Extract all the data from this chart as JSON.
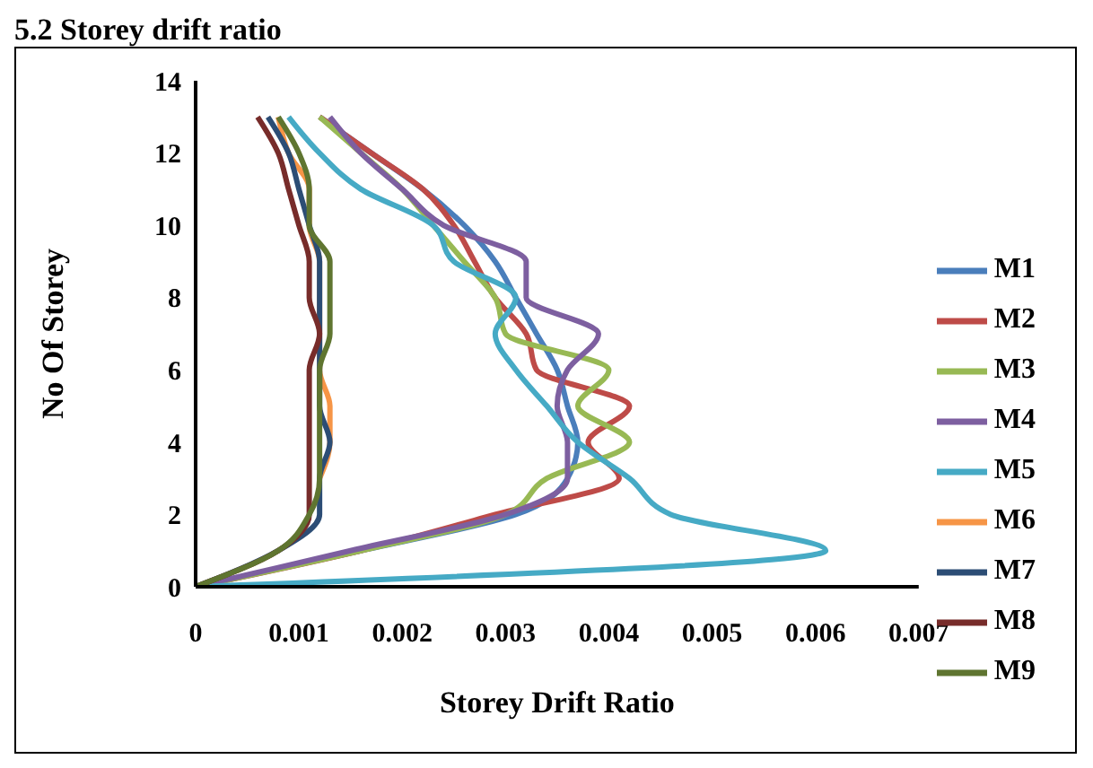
{
  "chart_data": {
    "type": "line",
    "title": "5.2 Storey drift ratio",
    "xlabel": "Storey Drift Ratio",
    "ylabel": "No Of Storey",
    "orientation": "horizontal",
    "x": [
      0,
      1,
      2,
      3,
      4,
      5,
      6,
      7,
      8,
      9,
      10,
      11,
      12,
      13
    ],
    "series": [
      {
        "name": "M1",
        "color": "#4a7ebb",
        "values": [
          0,
          0.0016,
          0.0031,
          0.0036,
          0.0037,
          0.0036,
          0.0035,
          0.0033,
          0.0031,
          0.0029,
          0.0026,
          0.0022,
          0.0017,
          0.0012
        ]
      },
      {
        "name": "M2",
        "color": "#be4b48",
        "values": [
          0,
          0.0016,
          0.0029,
          0.0041,
          0.0038,
          0.0042,
          0.0033,
          0.0032,
          0.0029,
          0.0027,
          0.0025,
          0.0022,
          0.0017,
          0.0012
        ]
      },
      {
        "name": "M3",
        "color": "#98b954",
        "values": [
          0,
          0.0016,
          0.003,
          0.0034,
          0.0042,
          0.0037,
          0.004,
          0.003,
          0.0029,
          0.0026,
          0.0023,
          0.002,
          0.0016,
          0.0012
        ]
      },
      {
        "name": "M4",
        "color": "#7d5fa0",
        "values": [
          0,
          0.0015,
          0.003,
          0.0036,
          0.0036,
          0.0035,
          0.0036,
          0.0039,
          0.0032,
          0.0032,
          0.0024,
          0.002,
          0.0016,
          0.0013
        ]
      },
      {
        "name": "M5",
        "color": "#46aac5",
        "values": [
          0,
          0.0061,
          0.0046,
          0.0042,
          0.0037,
          0.0034,
          0.0031,
          0.0029,
          0.0031,
          0.0025,
          0.0023,
          0.0016,
          0.0012,
          0.0009
        ]
      },
      {
        "name": "M6",
        "color": "#f69546",
        "values": [
          null,
          null,
          null,
          0.0012,
          0.0013,
          0.0013,
          0.0012,
          0.0012,
          0.0012,
          0.0012,
          0.0011,
          0.0011,
          0.0009,
          0.0008
        ]
      },
      {
        "name": "M7",
        "color": "#2c4d75",
        "values": [
          0,
          0.0008,
          0.0012,
          0.0012,
          0.0013,
          0.0012,
          0.0012,
          0.0012,
          0.0012,
          0.0012,
          0.0011,
          0.001,
          0.0009,
          0.0007
        ]
      },
      {
        "name": "M8",
        "color": "#772c2a",
        "values": [
          0,
          0.0008,
          0.0011,
          0.0011,
          0.0011,
          0.0011,
          0.0011,
          0.0012,
          0.0011,
          0.0011,
          0.001,
          0.0009,
          0.0008,
          0.0006
        ]
      },
      {
        "name": "M9",
        "color": "#5f7530",
        "values": [
          0,
          0.0008,
          0.0011,
          0.0012,
          0.0012,
          0.0012,
          0.0012,
          0.0013,
          0.0013,
          0.0013,
          0.0011,
          0.0011,
          0.001,
          0.0008
        ]
      }
    ],
    "xlim": [
      0,
      0.007
    ],
    "xticks": [
      0,
      0.001,
      0.002,
      0.003,
      0.004,
      0.005,
      0.006,
      0.007
    ],
    "ylim": [
      0,
      14
    ],
    "yticks": [
      0,
      2,
      4,
      6,
      8,
      10,
      12,
      14
    ],
    "legend": "right",
    "marker": "none",
    "line_style": "solid"
  }
}
